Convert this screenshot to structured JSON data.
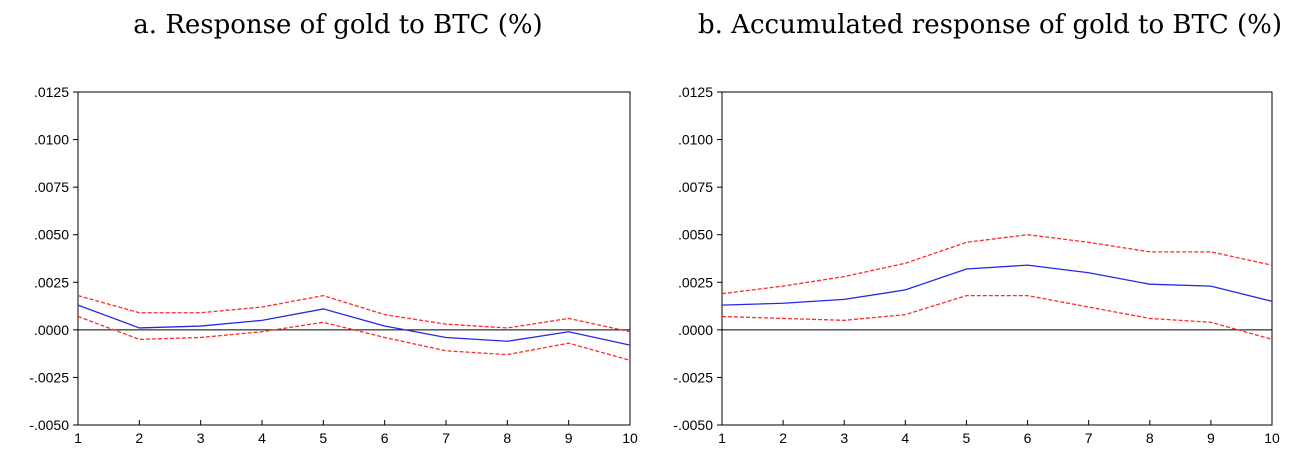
{
  "chart_data": [
    {
      "type": "line",
      "title": "a. Response of gold to BTC (%)",
      "x": [
        1,
        2,
        3,
        4,
        5,
        6,
        7,
        8,
        9,
        10
      ],
      "x_tick_labels": [
        "1",
        "2",
        "3",
        "4",
        "5",
        "6",
        "7",
        "8",
        "9",
        "10"
      ],
      "ylim": [
        -0.005,
        0.0125
      ],
      "y_ticks": [
        0.0125,
        0.01,
        0.0075,
        0.005,
        0.0025,
        0.0,
        -0.0025,
        -0.005
      ],
      "y_tick_labels": [
        ".0125",
        ".0100",
        ".0075",
        ".0050",
        ".0025",
        ".0000",
        "-.0025",
        "-.0050"
      ],
      "grid": false,
      "zero_line": true,
      "series": [
        {
          "role": "response",
          "style": "solid",
          "color": "#2828e6",
          "values": [
            0.0013,
            0.0001,
            0.0002,
            0.0005,
            0.0011,
            0.0002,
            -0.0004,
            -0.0006,
            -0.0001,
            -0.0008
          ]
        },
        {
          "role": "upper-band",
          "style": "dashed",
          "color": "#ff2a2a",
          "values": [
            0.0018,
            0.0009,
            0.0009,
            0.0012,
            0.0018,
            0.0008,
            0.0003,
            0.0001,
            0.0006,
            -0.0001
          ]
        },
        {
          "role": "lower-band",
          "style": "dashed",
          "color": "#ff2a2a",
          "values": [
            0.0007,
            -0.0005,
            -0.0004,
            -0.0001,
            0.0004,
            -0.0004,
            -0.0011,
            -0.0013,
            -0.0007,
            -0.0016
          ]
        }
      ]
    },
    {
      "type": "line",
      "title": "b. Accumulated response of gold to BTC (%)",
      "x": [
        1,
        2,
        3,
        4,
        5,
        6,
        7,
        8,
        9,
        10
      ],
      "x_tick_labels": [
        "1",
        "2",
        "3",
        "4",
        "5",
        "6",
        "7",
        "8",
        "9",
        "10"
      ],
      "ylim": [
        -0.005,
        0.0125
      ],
      "y_ticks": [
        0.0125,
        0.01,
        0.0075,
        0.005,
        0.0025,
        0.0,
        -0.0025,
        -0.005
      ],
      "y_tick_labels": [
        ".0125",
        ".0100",
        ".0075",
        ".0050",
        ".0025",
        ".0000",
        "-.0025",
        "-.0050"
      ],
      "grid": false,
      "zero_line": true,
      "series": [
        {
          "role": "response",
          "style": "solid",
          "color": "#2828e6",
          "values": [
            0.0013,
            0.0014,
            0.0016,
            0.0021,
            0.0032,
            0.0034,
            0.003,
            0.0024,
            0.0023,
            0.0015
          ]
        },
        {
          "role": "upper-band",
          "style": "dashed",
          "color": "#ff2a2a",
          "values": [
            0.0019,
            0.0023,
            0.0028,
            0.0035,
            0.0046,
            0.005,
            0.0046,
            0.0041,
            0.0041,
            0.0034
          ]
        },
        {
          "role": "lower-band",
          "style": "dashed",
          "color": "#ff2a2a",
          "values": [
            0.0007,
            0.0006,
            0.0005,
            0.0008,
            0.0018,
            0.0018,
            0.0012,
            0.0006,
            0.0004,
            -0.0005
          ]
        }
      ]
    }
  ]
}
